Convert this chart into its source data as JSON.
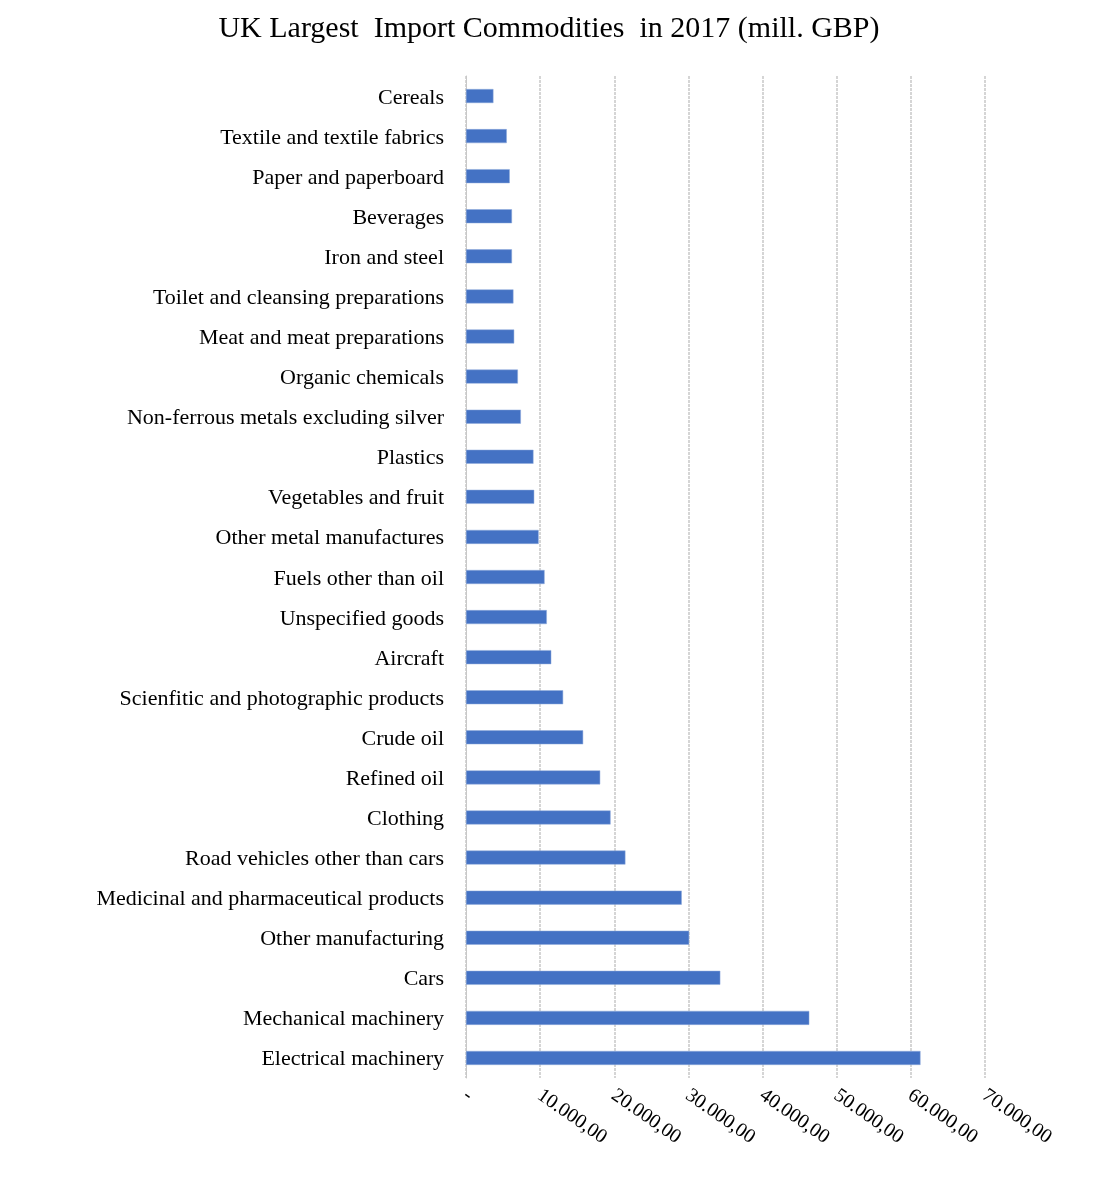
{
  "chart_data": {
    "type": "bar",
    "orientation": "horizontal",
    "title": "UK Largest  Import Commodities  in 2017 (mill. GBP)",
    "categories": [
      "Cereals",
      "Textile and textile fabrics",
      "Paper and paperboard",
      "Beverages",
      "Iron and steel",
      "Toilet and cleansing preparations",
      "Meat and meat preparations",
      "Organic chemicals",
      "Non-ferrous metals excluding silver",
      "Plastics",
      "Vegetables and fruit",
      "Other metal manufactures",
      "Fuels other than oil",
      "Unspecified goods",
      "Aircraft",
      "Scienfitic and photographic products",
      "Crude oil",
      "Refined oil",
      "Clothing",
      "Road vehicles other than cars",
      "Medicinal and pharmaceutical products",
      "Other manufacturing",
      "Cars",
      "Mechanical machinery",
      "Electrical machinery"
    ],
    "values": [
      3700,
      5500,
      5900,
      6200,
      6200,
      6400,
      6500,
      7000,
      7400,
      9100,
      9200,
      9800,
      10600,
      10900,
      11500,
      13100,
      15800,
      18100,
      19500,
      21500,
      29100,
      30100,
      34300,
      46300,
      61300
    ],
    "color": "#4472c4",
    "xlim": [
      0,
      70000
    ],
    "xticks": [
      {
        "value": 0,
        "label": "-"
      },
      {
        "value": 10000,
        "label": "10.000,00"
      },
      {
        "value": 20000,
        "label": "20.000,00"
      },
      {
        "value": 30000,
        "label": "30.000,00"
      },
      {
        "value": 40000,
        "label": "40.000,00"
      },
      {
        "value": 50000,
        "label": "50.000,00"
      },
      {
        "value": 60000,
        "label": "60.000,00"
      },
      {
        "value": 70000,
        "label": "70.000,00"
      }
    ],
    "grid": "x"
  }
}
